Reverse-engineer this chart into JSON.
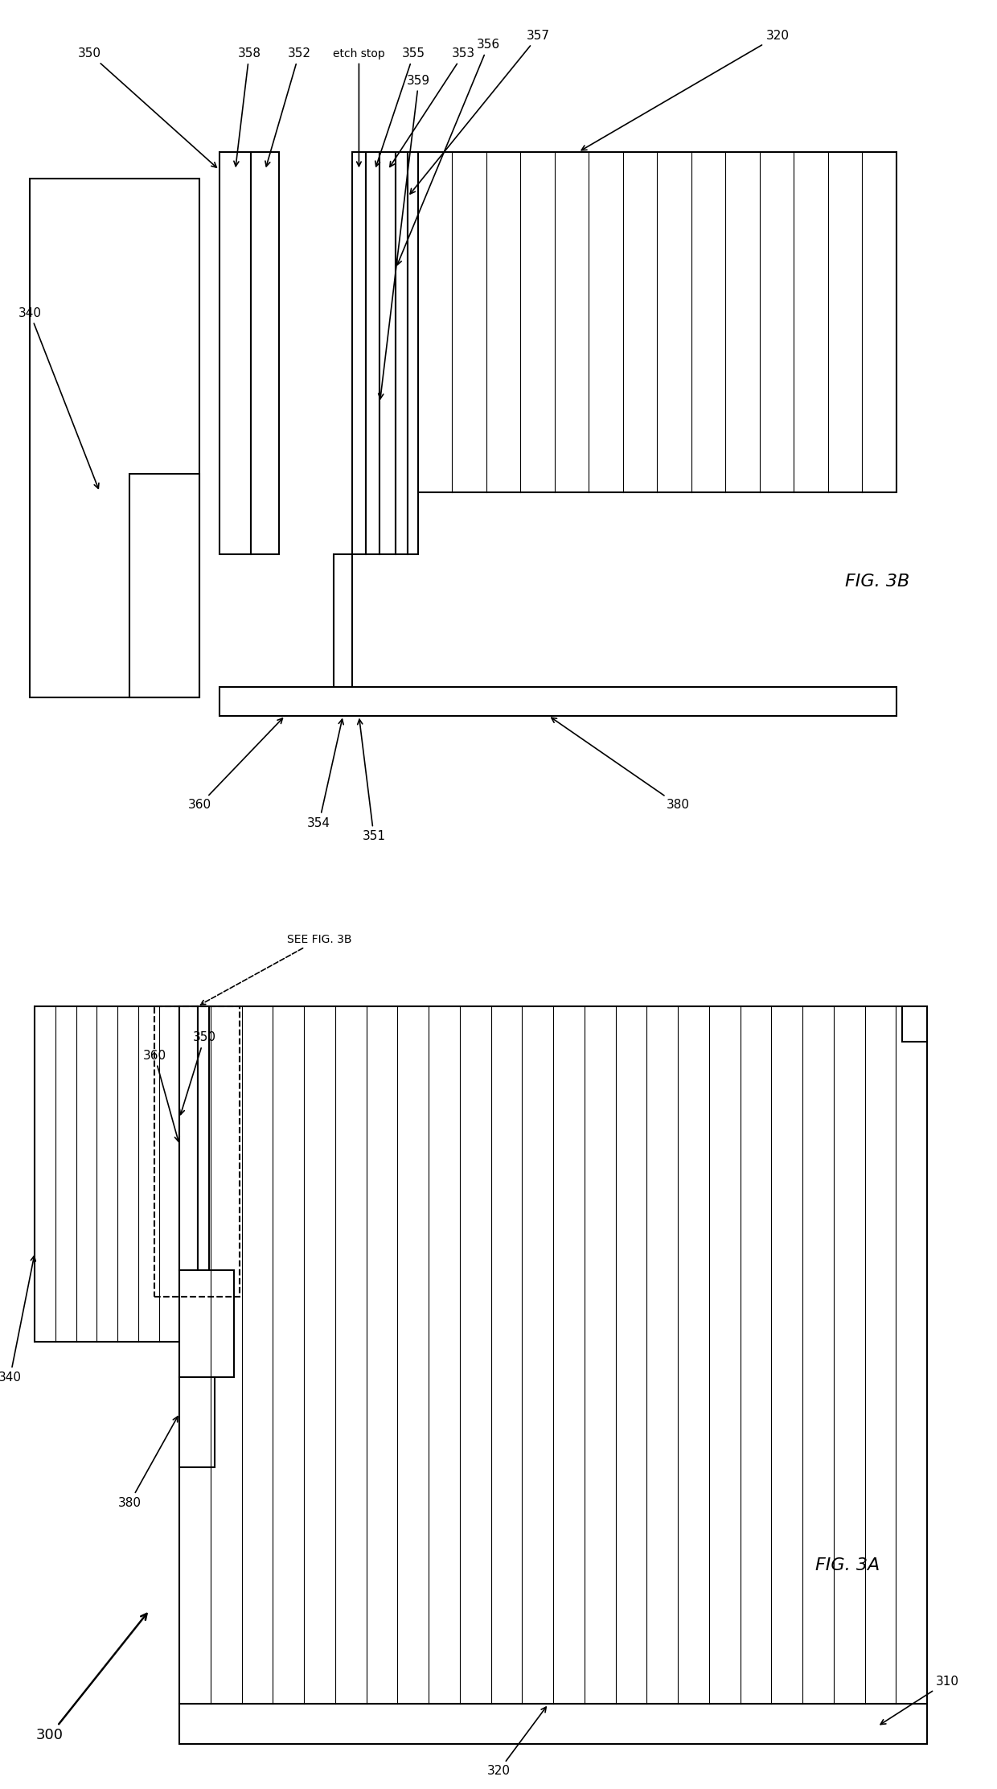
{
  "bg_color": "#ffffff",
  "line_color": "#000000",
  "fig_width": 12.4,
  "fig_height": 22.24,
  "fig3b": {
    "title": "FIG. 3B",
    "ref_350": "350",
    "ref_320": "320",
    "ref_340": "340",
    "ref_352": "352",
    "ref_353": "353",
    "ref_354": "354",
    "ref_355": "355",
    "ref_356": "356",
    "ref_357": "357",
    "ref_358": "358",
    "ref_359": "359",
    "ref_360": "360",
    "ref_351": "351",
    "ref_380": "380",
    "etch_stop": "etch stop"
  },
  "fig3a": {
    "title": "FIG. 3A",
    "ref_300": "300",
    "ref_310": "310",
    "ref_320": "320",
    "ref_340": "340",
    "ref_350": "350",
    "ref_360": "360",
    "ref_380": "380",
    "see_fig": "SEE FIG. 3B"
  }
}
